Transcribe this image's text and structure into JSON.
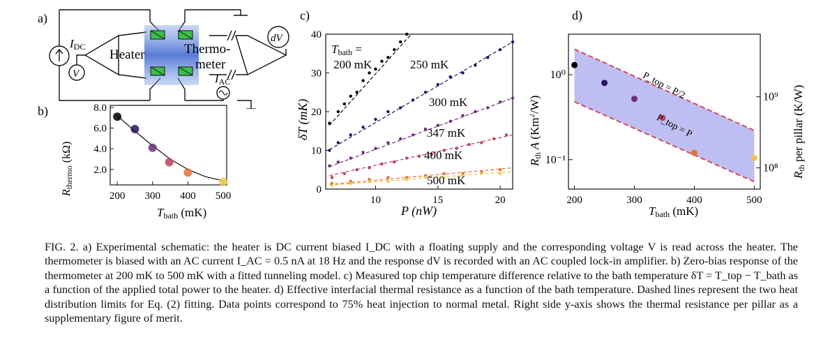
{
  "panel_a": {
    "label": "a)",
    "heater_label": "Heater",
    "thermo_label_1": "Thermo-",
    "thermo_label_2": "meter",
    "idc_main": "I",
    "idc_sub": "DC",
    "v_label": "V",
    "dv_label": "dV",
    "iac_main": "I",
    "iac_sub": "AC"
  },
  "panel_b": {
    "label": "b)",
    "ylabel_main": "R",
    "ylabel_sub": "thermo",
    "ylabel_unit": " (kΩ)",
    "xlabel_main": "T",
    "xlabel_sub": "bath",
    "xlabel_unit": " (mK)",
    "xticks": [
      "200",
      "300",
      "400",
      "500"
    ],
    "yticks": [
      "2.0",
      "4.0",
      "6.0",
      "8.0"
    ]
  },
  "panel_c": {
    "label": "c)",
    "ylabel": "δT (mK)",
    "xlabel": "P (nW)",
    "xticks": [
      "10",
      "15",
      "20"
    ],
    "yticks": [
      "0",
      "10",
      "20",
      "30",
      "40"
    ],
    "tbath_main": "T",
    "tbath_sub": "bath",
    "tbath_eq": " =",
    "series_labels": [
      "200 mK",
      "250 mK",
      "300 mK",
      "347 mK",
      "400 mK",
      "500 mK"
    ]
  },
  "panel_d": {
    "label": "d)",
    "ylabel_left": "R_th A (Km²/W)",
    "ylabel_right": "R_th per pillar (K/W)",
    "xlabel_main": "T",
    "xlabel_sub": "bath",
    "xlabel_unit": " (mK)",
    "xticks": [
      "200",
      "300",
      "400",
      "500"
    ],
    "yticks_left": [
      "10⁰",
      "10⁻¹"
    ],
    "yticks_right": [
      "10⁹",
      "10⁸"
    ],
    "upper_label": "P_top = P/2",
    "lower_label": "P_top = P"
  },
  "chart_data": [
    {
      "type": "scatter",
      "panel": "b",
      "x": [
        200,
        250,
        300,
        347,
        400,
        500
      ],
      "y": [
        7.1,
        5.9,
        4.1,
        2.7,
        1.7,
        0.8
      ],
      "fit": [
        [
          200,
          7.2
        ],
        [
          250,
          5.7
        ],
        [
          300,
          4.3
        ],
        [
          350,
          3.0
        ],
        [
          400,
          2.0
        ],
        [
          450,
          1.3
        ],
        [
          500,
          0.9
        ]
      ],
      "xlim": [
        180,
        510
      ],
      "ylim": [
        0.5,
        8.2
      ]
    },
    {
      "type": "scatter",
      "panel": "c",
      "xlim": [
        6,
        21
      ],
      "ylim": [
        0,
        40
      ],
      "series": [
        {
          "name": "200 mK",
          "color": "#000000",
          "x": [
            6.3,
            7,
            7.5,
            8,
            8.5,
            9,
            9.5,
            10,
            10.5,
            11,
            11.5,
            12,
            12.5
          ],
          "y": [
            17,
            20,
            22,
            24,
            25,
            28,
            30,
            31,
            33,
            34,
            36,
            38,
            40
          ],
          "fit": [
            [
              6.3,
              16.5
            ],
            [
              13,
              40.5
            ]
          ]
        },
        {
          "name": "250 mK",
          "color": "#2a1060",
          "x": [
            6.3,
            7,
            8,
            9,
            10,
            11,
            12,
            13,
            14,
            15,
            16,
            17,
            18,
            19,
            20,
            21
          ],
          "y": [
            10,
            12,
            14,
            16,
            18,
            20,
            21,
            23,
            25,
            27,
            29,
            30,
            32,
            34,
            36,
            38
          ],
          "fit": [
            [
              6.3,
              10.2
            ],
            [
              21,
              38
            ]
          ]
        },
        {
          "name": "300 mK",
          "color": "#6a2f78",
          "x": [
            6.3,
            7,
            8,
            9,
            10,
            11,
            12,
            13,
            14,
            15,
            16,
            17,
            18,
            19,
            20,
            21
          ],
          "y": [
            6,
            7,
            8,
            9.5,
            10.5,
            12,
            13,
            14,
            15.5,
            16.5,
            17.5,
            19,
            20,
            21,
            22.5,
            23.5
          ],
          "fit": [
            [
              6.3,
              5.8
            ],
            [
              21,
              23.5
            ]
          ]
        },
        {
          "name": "347 mK",
          "color": "#b8435a",
          "x": [
            6.5,
            7.5,
            8.5,
            9.5,
            10.5,
            11.5,
            12.5,
            13.5,
            14.5,
            15.5,
            16.5,
            17.5,
            18.5,
            19.5,
            20.5
          ],
          "y": [
            3,
            4,
            5,
            5.5,
            6.5,
            7,
            8,
            8.5,
            9,
            10,
            10.5,
            11.5,
            12,
            13,
            14
          ],
          "fit": [
            [
              6.3,
              3.5
            ],
            [
              21,
              14
            ]
          ]
        },
        {
          "name": "400 mK",
          "color": "#e0723a",
          "x": [
            6.5,
            8,
            9.5,
            11,
            12.5,
            14,
            15.5,
            17,
            18.5,
            20
          ],
          "y": [
            1.5,
            2,
            2.5,
            3,
            3,
            3.5,
            4,
            4,
            4.5,
            5
          ],
          "fit": [
            [
              6.3,
              1.2
            ],
            [
              21,
              5.5
            ]
          ]
        },
        {
          "name": "500 mK",
          "color": "#f0c64a",
          "x": [
            6.5,
            8,
            9.5,
            11,
            12.5,
            14,
            15.5,
            17,
            18.5,
            20
          ],
          "y": [
            1,
            1.5,
            2,
            2,
            2.5,
            3,
            3,
            3.5,
            4,
            4
          ],
          "fit": [
            [
              6.3,
              1
            ],
            [
              21,
              4.5
            ]
          ]
        }
      ]
    },
    {
      "type": "scatter",
      "panel": "d",
      "yscale": "log",
      "xlim": [
        190,
        510
      ],
      "ylim": [
        0.045,
        3
      ],
      "x": [
        200,
        250,
        300,
        347,
        400,
        500
      ],
      "y": [
        1.3,
        0.8,
        0.52,
        0.31,
        0.12,
        0.105
      ],
      "colors": [
        "#000000",
        "#2a1060",
        "#6a2f78",
        "#b8435a",
        "#e0723a",
        "#f0c64a"
      ],
      "band_upper": [
        [
          200,
          2.0
        ],
        [
          500,
          0.22
        ]
      ],
      "band_lower": [
        [
          200,
          0.48
        ],
        [
          500,
          0.055
        ]
      ]
    }
  ],
  "caption": {
    "text": "FIG. 2. a) Experimental schematic: the heater is DC current biased I_DC with a floating supply and the corresponding voltage V is read across the heater. The thermometer is biased with an AC current I_AC = 0.5 nA at 18 Hz and the response dV is recorded with an AC coupled lock-in amplifier. b) Zero-bias response of the thermometer at 200 mK to 500 mK with a fitted tunneling model. c) Measured top chip temperature difference relative to the bath temperature δT = T_top − T_bath as a function of the applied total power to the heater. d) Effective interfacial thermal resistance as a function of the bath temperature. Dashed lines represent the two heat distribution limits for Eq. (2) fitting. Data points correspond to 75% heat injection to normal metal. Right side y-axis shows the thermal resistance per pillar as a supplementary figure of merit."
  }
}
